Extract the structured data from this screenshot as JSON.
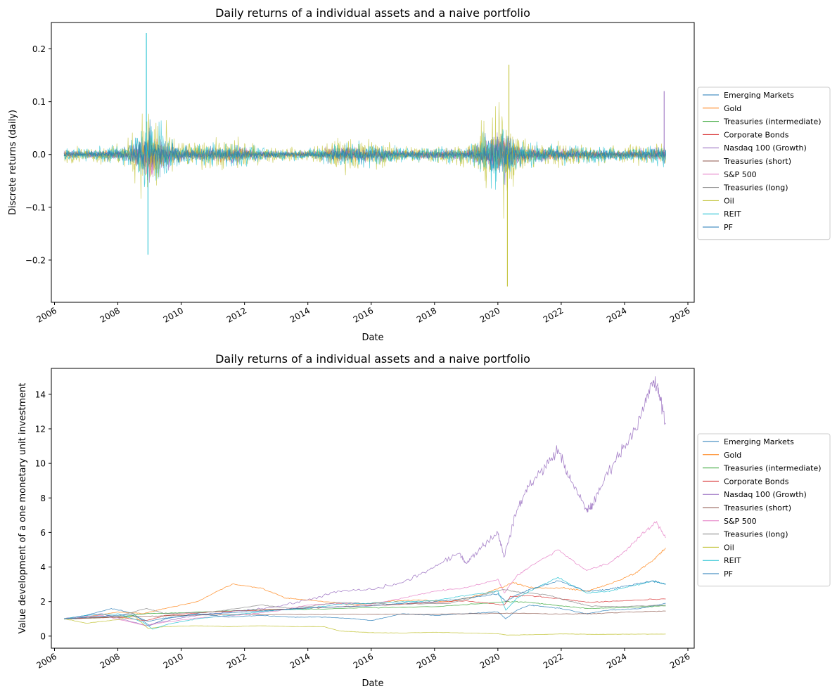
{
  "series_legend": [
    {
      "name": "Emerging Markets",
      "color": "#1f77b4"
    },
    {
      "name": "Gold",
      "color": "#ff7f0e"
    },
    {
      "name": "Treasuries (intermediate)",
      "color": "#2ca02c"
    },
    {
      "name": "Corporate Bonds",
      "color": "#d62728"
    },
    {
      "name": "Nasdaq 100 (Growth)",
      "color": "#9467bd"
    },
    {
      "name": "Treasuries (short)",
      "color": "#8c564b"
    },
    {
      "name": "S&P 500",
      "color": "#e377c2"
    },
    {
      "name": "Treasuries (long)",
      "color": "#7f7f7f"
    },
    {
      "name": "Oil",
      "color": "#bcbd22"
    },
    {
      "name": "REIT",
      "color": "#17becf"
    },
    {
      "name": "PF",
      "color": "#1f77b4"
    }
  ],
  "chart_data": [
    {
      "type": "line",
      "title": "Daily returns of a individual assets and a naive portfolio",
      "xlabel": "Date",
      "ylabel": "Discrete returns (daily)",
      "xlim": [
        2005.9,
        2026.2
      ],
      "ylim": [
        -0.28,
        0.25
      ],
      "xticks": [
        "2006",
        "2008",
        "2010",
        "2012",
        "2014",
        "2016",
        "2018",
        "2020",
        "2022",
        "2024",
        "2026"
      ],
      "yticks": [
        "0.2",
        "0.1",
        "0.0",
        "−0.1",
        "−0.2"
      ],
      "ytick_values": [
        0.2,
        0.1,
        0.0,
        -0.1,
        -0.2
      ],
      "legend_position": "center-left outside right",
      "grid": false,
      "date_range": [
        "2006-04",
        "2025-04"
      ],
      "annotated_extremes": [
        {
          "series": "REIT",
          "x": 2008.9,
          "y": 0.23
        },
        {
          "series": "REIT",
          "x": 2008.95,
          "y": -0.19
        },
        {
          "series": "Oil",
          "x": 2020.3,
          "y": -0.25
        },
        {
          "series": "Oil",
          "x": 2020.35,
          "y": 0.17
        },
        {
          "series": "Nasdaq 100 (Growth)",
          "x": 2025.25,
          "y": 0.12
        }
      ],
      "volatility_profile": [
        {
          "x": 2006.3,
          "amp": 0.025
        },
        {
          "x": 2007.0,
          "amp": 0.02
        },
        {
          "x": 2007.7,
          "amp": 0.03
        },
        {
          "x": 2008.3,
          "amp": 0.04
        },
        {
          "x": 2008.75,
          "amp": 0.12
        },
        {
          "x": 2009.0,
          "amp": 0.16
        },
        {
          "x": 2009.4,
          "amp": 0.09
        },
        {
          "x": 2009.9,
          "amp": 0.045
        },
        {
          "x": 2010.5,
          "amp": 0.035
        },
        {
          "x": 2011.7,
          "amp": 0.05
        },
        {
          "x": 2012.5,
          "amp": 0.025
        },
        {
          "x": 2014.0,
          "amp": 0.018
        },
        {
          "x": 2015.0,
          "amp": 0.05
        },
        {
          "x": 2016.0,
          "amp": 0.045
        },
        {
          "x": 2017.0,
          "amp": 0.025
        },
        {
          "x": 2018.0,
          "amp": 0.03
        },
        {
          "x": 2019.0,
          "amp": 0.03
        },
        {
          "x": 2020.2,
          "amp": 0.15
        },
        {
          "x": 2020.6,
          "amp": 0.06
        },
        {
          "x": 2021.0,
          "amp": 0.04
        },
        {
          "x": 2022.0,
          "amp": 0.04
        },
        {
          "x": 2023.0,
          "amp": 0.03
        },
        {
          "x": 2024.0,
          "amp": 0.025
        },
        {
          "x": 2025.3,
          "amp": 0.04
        }
      ]
    },
    {
      "type": "line",
      "title": "Daily returns of a individual assets and a naive portfolio",
      "xlabel": "Date",
      "ylabel": "Value development of a one monetary unit investment",
      "xlim": [
        2005.9,
        2026.2
      ],
      "ylim": [
        -0.7,
        15.5
      ],
      "xticks": [
        "2006",
        "2008",
        "2010",
        "2012",
        "2014",
        "2016",
        "2018",
        "2020",
        "2022",
        "2024",
        "2026"
      ],
      "yticks": [
        "14",
        "12",
        "10",
        "8",
        "6",
        "4",
        "2",
        "0"
      ],
      "ytick_values": [
        14,
        12,
        10,
        8,
        6,
        4,
        2,
        0
      ],
      "legend_position": "center-left outside right",
      "grid": false,
      "series": [
        {
          "name": "Emerging Markets",
          "x": [
            2006.3,
            2007.0,
            2007.8,
            2008.5,
            2009.0,
            2009.5,
            2010.5,
            2011.5,
            2012.5,
            2013.5,
            2014.5,
            2015.5,
            2016.0,
            2017.0,
            2018.0,
            2019.0,
            2020.0,
            2020.25,
            2020.6,
            2021.0,
            2021.5,
            2022.0,
            2022.8,
            2023.5,
            2024.5,
            2025.3
          ],
          "y": [
            1.0,
            1.2,
            1.6,
            1.3,
            0.6,
            1.0,
            1.3,
            1.1,
            1.2,
            1.1,
            1.1,
            1.0,
            0.9,
            1.3,
            1.2,
            1.3,
            1.4,
            1.0,
            1.5,
            1.8,
            1.7,
            1.6,
            1.3,
            1.5,
            1.6,
            1.9
          ]
        },
        {
          "name": "Gold",
          "x": [
            2006.3,
            2007.0,
            2008.0,
            2008.8,
            2009.5,
            2010.5,
            2011.6,
            2012.5,
            2013.3,
            2014.0,
            2015.5,
            2016.5,
            2017.5,
            2018.5,
            2019.5,
            2020.5,
            2021.0,
            2022.0,
            2022.8,
            2023.5,
            2024.3,
            2024.9,
            2025.3
          ],
          "y": [
            1.0,
            1.1,
            1.4,
            1.3,
            1.6,
            2.0,
            3.0,
            2.8,
            2.2,
            2.1,
            1.8,
            2.0,
            2.1,
            2.0,
            2.4,
            3.1,
            2.8,
            2.8,
            2.6,
            3.0,
            3.6,
            4.4,
            5.1
          ]
        },
        {
          "name": "Treasuries (intermediate)",
          "x": [
            2006.3,
            2008.0,
            2008.9,
            2010.0,
            2012.0,
            2014.0,
            2016.0,
            2018.0,
            2020.3,
            2021.0,
            2022.0,
            2022.9,
            2024.0,
            2025.3
          ],
          "y": [
            1.0,
            1.1,
            1.3,
            1.35,
            1.5,
            1.55,
            1.65,
            1.7,
            2.0,
            1.95,
            1.75,
            1.6,
            1.65,
            1.75
          ]
        },
        {
          "name": "Corporate Bonds",
          "x": [
            2006.3,
            2008.0,
            2008.9,
            2009.5,
            2011.0,
            2013.0,
            2015.0,
            2017.0,
            2019.0,
            2020.2,
            2020.4,
            2021.0,
            2022.0,
            2022.9,
            2024.0,
            2025.3
          ],
          "y": [
            1.0,
            1.1,
            0.9,
            1.2,
            1.4,
            1.55,
            1.7,
            1.85,
            2.05,
            1.8,
            2.3,
            2.35,
            2.15,
            1.95,
            2.05,
            2.15
          ]
        },
        {
          "name": "Nasdaq 100 (Growth)",
          "x": [
            2006.3,
            2007.5,
            2008.9,
            2009.3,
            2010.5,
            2012.0,
            2013.0,
            2014.0,
            2015.0,
            2016.0,
            2017.0,
            2018.0,
            2018.8,
            2019.0,
            2019.5,
            2020.0,
            2020.2,
            2020.6,
            2021.0,
            2021.5,
            2021.9,
            2022.3,
            2022.8,
            2023.0,
            2023.5,
            2024.0,
            2024.5,
            2024.9,
            2025.1,
            2025.3
          ],
          "y": [
            1.0,
            1.3,
            0.6,
            0.8,
            1.2,
            1.5,
            1.7,
            2.1,
            2.6,
            2.7,
            3.1,
            4.0,
            4.8,
            4.2,
            5.2,
            6.0,
            4.6,
            7.3,
            8.8,
            9.8,
            10.8,
            9.0,
            7.3,
            7.6,
            9.6,
            11.0,
            12.6,
            14.8,
            14.0,
            12.3
          ]
        },
        {
          "name": "Treasuries (short)",
          "x": [
            2006.3,
            2008.0,
            2008.9,
            2010.0,
            2012.0,
            2014.0,
            2016.0,
            2018.0,
            2020.0,
            2020.5,
            2022.0,
            2023.0,
            2024.0,
            2025.3
          ],
          "y": [
            1.0,
            1.1,
            1.15,
            1.2,
            1.25,
            1.25,
            1.26,
            1.27,
            1.32,
            1.33,
            1.28,
            1.3,
            1.38,
            1.45
          ]
        },
        {
          "name": "S&P 500",
          "x": [
            2006.3,
            2007.5,
            2008.9,
            2009.3,
            2010.5,
            2012.0,
            2013.0,
            2014.0,
            2015.0,
            2016.0,
            2017.0,
            2018.0,
            2019.0,
            2020.0,
            2020.2,
            2020.6,
            2021.0,
            2021.9,
            2022.8,
            2023.5,
            2024.0,
            2024.5,
            2025.0,
            2025.3
          ],
          "y": [
            1.0,
            1.2,
            0.6,
            0.75,
            1.05,
            1.25,
            1.45,
            1.8,
            1.9,
            1.85,
            2.2,
            2.6,
            2.8,
            3.3,
            2.5,
            3.5,
            4.0,
            5.0,
            3.8,
            4.2,
            4.9,
            5.8,
            6.6,
            5.7
          ]
        },
        {
          "name": "Treasuries (long)",
          "x": [
            2006.3,
            2008.0,
            2008.9,
            2009.5,
            2011.0,
            2012.5,
            2013.5,
            2015.0,
            2016.5,
            2018.5,
            2020.2,
            2020.6,
            2021.5,
            2022.3,
            2022.9,
            2023.8,
            2025.3
          ],
          "y": [
            1.0,
            1.15,
            1.6,
            1.3,
            1.4,
            1.8,
            1.6,
            1.95,
            1.85,
            1.9,
            2.7,
            2.55,
            2.4,
            2.0,
            1.75,
            1.7,
            1.8
          ]
        },
        {
          "name": "Oil",
          "x": [
            2006.3,
            2007.0,
            2008.0,
            2008.5,
            2008.95,
            2009.5,
            2010.5,
            2011.5,
            2012.5,
            2013.5,
            2014.5,
            2015.0,
            2015.5,
            2016.0,
            2017.0,
            2018.0,
            2019.0,
            2020.0,
            2020.3,
            2021.0,
            2022.0,
            2023.0,
            2024.0,
            2025.3
          ],
          "y": [
            1.0,
            0.75,
            0.95,
            1.2,
            0.45,
            0.55,
            0.6,
            0.55,
            0.6,
            0.55,
            0.55,
            0.3,
            0.25,
            0.2,
            0.18,
            0.22,
            0.18,
            0.14,
            0.06,
            0.08,
            0.13,
            0.1,
            0.11,
            0.12
          ]
        },
        {
          "name": "REIT",
          "x": [
            2006.3,
            2007.0,
            2008.0,
            2008.8,
            2009.1,
            2009.6,
            2010.5,
            2012.0,
            2013.0,
            2014.0,
            2015.0,
            2016.0,
            2017.0,
            2018.0,
            2019.0,
            2020.0,
            2020.25,
            2020.6,
            2021.0,
            2021.9,
            2022.8,
            2023.5,
            2024.0,
            2024.9,
            2025.3
          ],
          "y": [
            1.0,
            1.2,
            1.3,
            0.8,
            0.4,
            0.7,
            1.0,
            1.3,
            1.5,
            1.6,
            1.85,
            1.9,
            2.0,
            2.05,
            2.35,
            2.6,
            1.5,
            2.2,
            2.6,
            3.4,
            2.5,
            2.6,
            2.8,
            3.2,
            3.0
          ]
        },
        {
          "name": "PF",
          "x": [
            2006.3,
            2007.5,
            2008.4,
            2008.95,
            2009.5,
            2010.5,
            2012.0,
            2013.0,
            2014.0,
            2015.0,
            2016.0,
            2017.0,
            2018.0,
            2019.0,
            2020.0,
            2020.25,
            2020.6,
            2021.0,
            2021.9,
            2022.8,
            2023.5,
            2024.0,
            2024.9,
            2025.3
          ],
          "y": [
            1.0,
            1.15,
            1.25,
            0.85,
            1.05,
            1.25,
            1.4,
            1.5,
            1.65,
            1.7,
            1.75,
            1.9,
            2.0,
            2.2,
            2.45,
            2.0,
            2.4,
            2.7,
            3.2,
            2.6,
            2.7,
            2.9,
            3.2,
            3.0
          ]
        }
      ]
    }
  ]
}
